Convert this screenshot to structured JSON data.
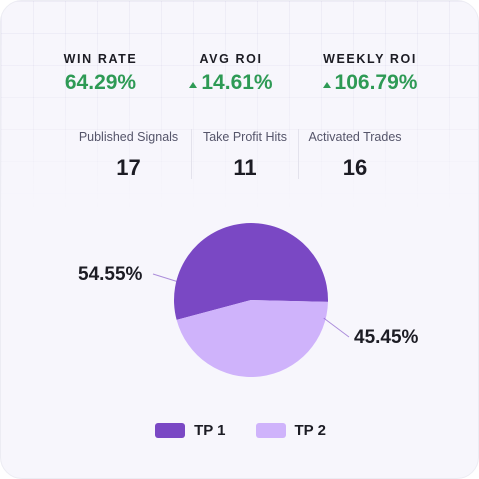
{
  "stats": {
    "win_rate": {
      "label": "WIN RATE",
      "value": "64.29%"
    },
    "avg_roi": {
      "label": "AVG ROI",
      "value": "14.61%",
      "trend_icon": "triangle-up"
    },
    "weekly_roi": {
      "label": "WEEKLY ROI",
      "value": "106.79%",
      "trend_icon": "triangle-up"
    }
  },
  "counts": {
    "published_signals": {
      "label": "Published Signals",
      "value": "17"
    },
    "take_profit_hits": {
      "label": "Take Profit Hits",
      "value": "11"
    },
    "activated_trades": {
      "label": "Activated Trades",
      "value": "16"
    }
  },
  "colors": {
    "positive": "#2e9a55",
    "tp1": "#7a48c4",
    "tp2": "#cfb3fb"
  },
  "chart_data": {
    "type": "pie",
    "categories": [
      "TP 1",
      "TP 2"
    ],
    "values": [
      54.55,
      45.45
    ],
    "labels": [
      "54.55%",
      "45.45%"
    ],
    "colors": [
      "#7a48c4",
      "#cfb3fb"
    ],
    "legend_position": "bottom"
  }
}
